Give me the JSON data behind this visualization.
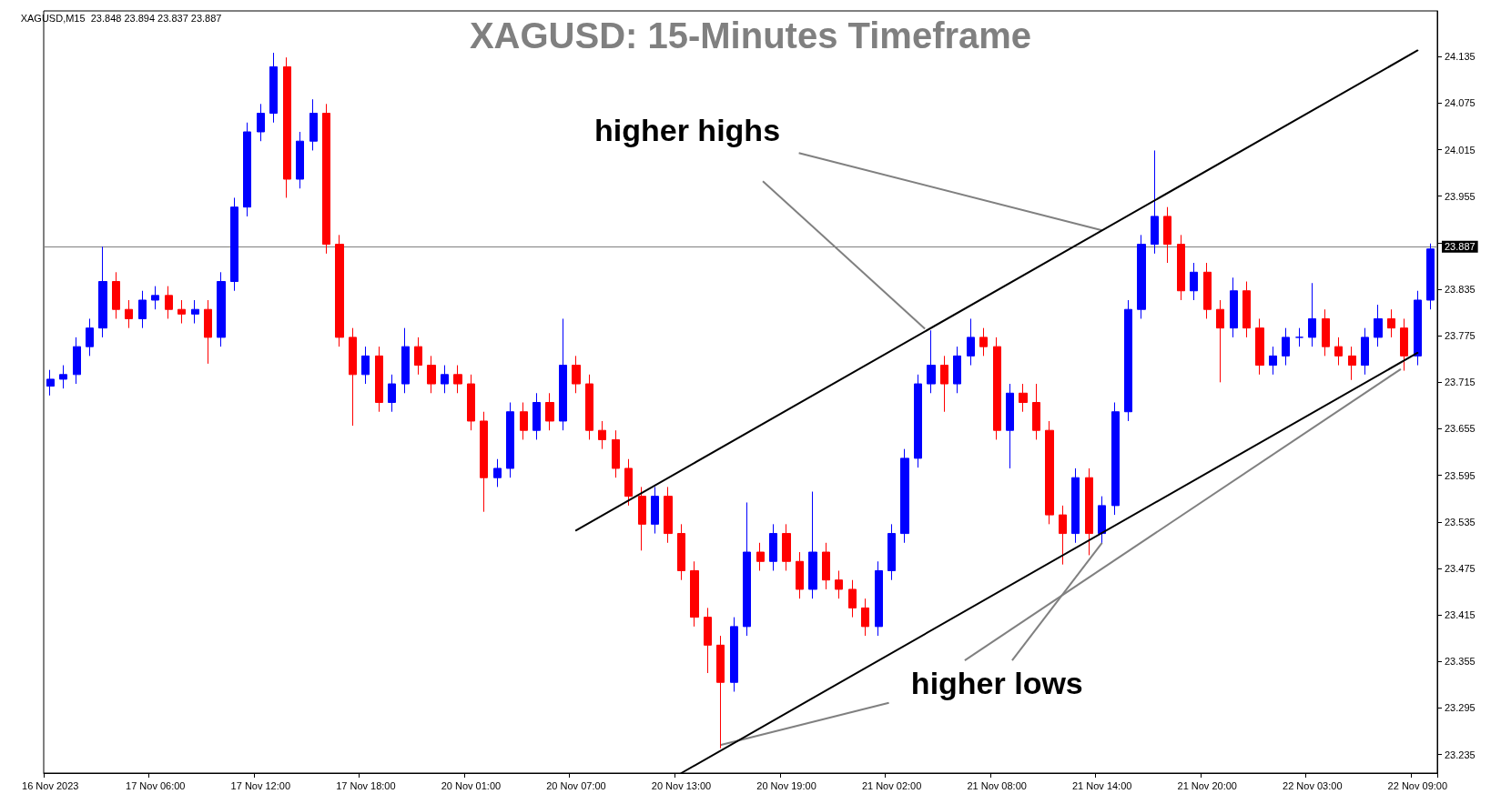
{
  "chart_data": {
    "type": "candlestick",
    "title": "XAGUSD: 15-Minutes Timeframe",
    "annotations": [
      "XAGUSD,M15  23.848 23.894 23.837 23.887",
      {
        "text": "higher highs",
        "x": "21 Nov 14:00",
        "y": 23.911
      },
      {
        "text": "higher lows",
        "x": "21 Nov 14:00",
        "y": 23.508
      }
    ],
    "categories": [
      "16 Nov 2023",
      null,
      null,
      null,
      null,
      null,
      null,
      null,
      "17 Nov 06:00",
      null,
      null,
      null,
      null,
      null,
      null,
      null,
      "17 Nov 12:00",
      null,
      null,
      null,
      null,
      null,
      null,
      null,
      "17 Nov 18:00",
      null,
      null,
      null,
      null,
      null,
      null,
      null,
      "20 Nov 01:00",
      null,
      null,
      null,
      null,
      null,
      null,
      null,
      "20 Nov 07:00",
      null,
      null,
      null,
      null,
      null,
      null,
      null,
      "20 Nov 13:00",
      null,
      null,
      null,
      null,
      null,
      null,
      null,
      "20 Nov 19:00",
      null,
      null,
      null,
      null,
      null,
      null,
      null,
      "21 Nov 02:00",
      null,
      null,
      null,
      null,
      null,
      null,
      null,
      "21 Nov 08:00",
      null,
      null,
      null,
      null,
      null,
      null,
      null,
      "21 Nov 14:00",
      null,
      null,
      null,
      null,
      null,
      null,
      null,
      "21 Nov 20:00",
      null,
      null,
      null,
      null,
      null,
      null,
      null,
      "22 Nov 03:00",
      null,
      null,
      null,
      null,
      null,
      null,
      null,
      "22 Nov 09:00",
      null
    ],
    "ohlc": [
      [
        23.71,
        23.731,
        23.698,
        23.719
      ],
      [
        23.719,
        23.737,
        23.707,
        23.725
      ],
      [
        23.725,
        23.773,
        23.713,
        23.761
      ],
      [
        23.761,
        23.797,
        23.749,
        23.785
      ],
      [
        23.785,
        23.89,
        23.773,
        23.845
      ],
      [
        23.845,
        23.857,
        23.797,
        23.809
      ],
      [
        23.809,
        23.821,
        23.785,
        23.797
      ],
      [
        23.797,
        23.833,
        23.785,
        23.821
      ],
      [
        23.821,
        23.839,
        23.809,
        23.827
      ],
      [
        23.827,
        23.839,
        23.797,
        23.809
      ],
      [
        23.809,
        23.821,
        23.791,
        23.803
      ],
      [
        23.803,
        23.821,
        23.791,
        23.809
      ],
      [
        23.809,
        23.821,
        23.739,
        23.773
      ],
      [
        23.773,
        23.857,
        23.761,
        23.845
      ],
      [
        23.845,
        23.953,
        23.833,
        23.941
      ],
      [
        23.941,
        24.05,
        23.929,
        24.038
      ],
      [
        24.038,
        24.074,
        24.026,
        24.062
      ],
      [
        24.062,
        24.14,
        24.05,
        24.122
      ],
      [
        24.122,
        24.134,
        23.953,
        23.977
      ],
      [
        23.977,
        24.038,
        23.965,
        24.026
      ],
      [
        24.026,
        24.08,
        24.014,
        24.062
      ],
      [
        24.062,
        24.074,
        23.881,
        23.893
      ],
      [
        23.893,
        23.905,
        23.761,
        23.773
      ],
      [
        23.773,
        23.785,
        23.659,
        23.725
      ],
      [
        23.725,
        23.761,
        23.713,
        23.749
      ],
      [
        23.749,
        23.761,
        23.677,
        23.689
      ],
      [
        23.689,
        23.725,
        23.677,
        23.713
      ],
      [
        23.713,
        23.785,
        23.701,
        23.761
      ],
      [
        23.761,
        23.773,
        23.725,
        23.737
      ],
      [
        23.737,
        23.749,
        23.701,
        23.713
      ],
      [
        23.713,
        23.737,
        23.701,
        23.725
      ],
      [
        23.725,
        23.737,
        23.701,
        23.713
      ],
      [
        23.713,
        23.725,
        23.653,
        23.665
      ],
      [
        23.665,
        23.677,
        23.548,
        23.592
      ],
      [
        23.592,
        23.616,
        23.58,
        23.604
      ],
      [
        23.604,
        23.689,
        23.592,
        23.677
      ],
      [
        23.677,
        23.689,
        23.641,
        23.653
      ],
      [
        23.653,
        23.701,
        23.641,
        23.689
      ],
      [
        23.689,
        23.701,
        23.653,
        23.665
      ],
      [
        23.665,
        23.797,
        23.653,
        23.737
      ],
      [
        23.737,
        23.749,
        23.701,
        23.713
      ],
      [
        23.713,
        23.725,
        23.641,
        23.653
      ],
      [
        23.653,
        23.665,
        23.629,
        23.641
      ],
      [
        23.641,
        23.653,
        23.592,
        23.604
      ],
      [
        23.604,
        23.616,
        23.556,
        23.568
      ],
      [
        23.568,
        23.58,
        23.498,
        23.532
      ],
      [
        23.532,
        23.58,
        23.52,
        23.568
      ],
      [
        23.568,
        23.58,
        23.508,
        23.52
      ],
      [
        23.52,
        23.532,
        23.46,
        23.472
      ],
      [
        23.472,
        23.484,
        23.4,
        23.412
      ],
      [
        23.412,
        23.424,
        23.34,
        23.376
      ],
      [
        23.376,
        23.388,
        23.243,
        23.328
      ],
      [
        23.328,
        23.412,
        23.316,
        23.4
      ],
      [
        23.4,
        23.56,
        23.388,
        23.496
      ],
      [
        23.496,
        23.508,
        23.472,
        23.484
      ],
      [
        23.484,
        23.532,
        23.472,
        23.52
      ],
      [
        23.52,
        23.532,
        23.472,
        23.484
      ],
      [
        23.484,
        23.496,
        23.436,
        23.448
      ],
      [
        23.448,
        23.574,
        23.436,
        23.496
      ],
      [
        23.496,
        23.508,
        23.448,
        23.46
      ],
      [
        23.46,
        23.472,
        23.436,
        23.448
      ],
      [
        23.448,
        23.46,
        23.412,
        23.424
      ],
      [
        23.424,
        23.436,
        23.388,
        23.4
      ],
      [
        23.4,
        23.484,
        23.388,
        23.472
      ],
      [
        23.472,
        23.532,
        23.46,
        23.52
      ],
      [
        23.52,
        23.629,
        23.508,
        23.617
      ],
      [
        23.617,
        23.725,
        23.605,
        23.713
      ],
      [
        23.713,
        23.782,
        23.701,
        23.737
      ],
      [
        23.737,
        23.749,
        23.677,
        23.713
      ],
      [
        23.713,
        23.761,
        23.701,
        23.749
      ],
      [
        23.749,
        23.797,
        23.737,
        23.773
      ],
      [
        23.773,
        23.785,
        23.749,
        23.761
      ],
      [
        23.761,
        23.773,
        23.641,
        23.653
      ],
      [
        23.653,
        23.713,
        23.604,
        23.701
      ],
      [
        23.701,
        23.713,
        23.677,
        23.689
      ],
      [
        23.689,
        23.713,
        23.641,
        23.653
      ],
      [
        23.653,
        23.665,
        23.532,
        23.544
      ],
      [
        23.544,
        23.556,
        23.48,
        23.52
      ],
      [
        23.52,
        23.604,
        23.508,
        23.592
      ],
      [
        23.592,
        23.604,
        23.492,
        23.52
      ],
      [
        23.52,
        23.568,
        23.508,
        23.556
      ],
      [
        23.556,
        23.689,
        23.544,
        23.677
      ],
      [
        23.677,
        23.821,
        23.665,
        23.809
      ],
      [
        23.809,
        23.905,
        23.797,
        23.893
      ],
      [
        23.893,
        24.014,
        23.881,
        23.929
      ],
      [
        23.929,
        23.941,
        23.869,
        23.893
      ],
      [
        23.893,
        23.905,
        23.821,
        23.833
      ],
      [
        23.833,
        23.869,
        23.821,
        23.857
      ],
      [
        23.857,
        23.869,
        23.797,
        23.809
      ],
      [
        23.809,
        23.821,
        23.715,
        23.785
      ],
      [
        23.785,
        23.85,
        23.773,
        23.833
      ],
      [
        23.833,
        23.845,
        23.773,
        23.785
      ],
      [
        23.785,
        23.797,
        23.725,
        23.737
      ],
      [
        23.737,
        23.761,
        23.725,
        23.749
      ],
      [
        23.749,
        23.785,
        23.737,
        23.773
      ],
      [
        23.773,
        23.785,
        23.761,
        23.773
      ],
      [
        23.773,
        23.843,
        23.761,
        23.797
      ],
      [
        23.797,
        23.809,
        23.749,
        23.761
      ],
      [
        23.761,
        23.773,
        23.737,
        23.749
      ],
      [
        23.749,
        23.761,
        23.718,
        23.737
      ],
      [
        23.737,
        23.785,
        23.725,
        23.773
      ],
      [
        23.773,
        23.815,
        23.761,
        23.797
      ],
      [
        23.797,
        23.809,
        23.773,
        23.785
      ],
      [
        23.785,
        23.797,
        23.73,
        23.749
      ],
      [
        23.749,
        23.833,
        23.737,
        23.821
      ],
      [
        23.821,
        23.894,
        23.809,
        23.887
      ]
    ],
    "colors": [
      "#0000ff",
      "#0000ff",
      "#0000ff",
      "#0000ff",
      "#0000ff",
      "#ff0000",
      "#ff0000",
      "#0000ff",
      "#0000ff",
      "#ff0000",
      "#ff0000",
      "#0000ff",
      "#ff0000",
      "#0000ff",
      "#0000ff",
      "#0000ff",
      "#0000ff",
      "#0000ff",
      "#ff0000",
      "#0000ff",
      "#0000ff",
      "#ff0000",
      "#ff0000",
      "#ff0000",
      "#0000ff",
      "#ff0000",
      "#0000ff",
      "#0000ff",
      "#ff0000",
      "#ff0000",
      "#0000ff",
      "#ff0000",
      "#ff0000",
      "#ff0000",
      "#0000ff",
      "#0000ff",
      "#ff0000",
      "#0000ff",
      "#ff0000",
      "#0000ff",
      "#ff0000",
      "#ff0000",
      "#ff0000",
      "#ff0000",
      "#ff0000",
      "#ff0000",
      "#0000ff",
      "#ff0000",
      "#ff0000",
      "#ff0000",
      "#ff0000",
      "#ff0000",
      "#0000ff",
      "#0000ff",
      "#ff0000",
      "#0000ff",
      "#ff0000",
      "#ff0000",
      "#0000ff",
      "#ff0000",
      "#ff0000",
      "#ff0000",
      "#ff0000",
      "#0000ff",
      "#0000ff",
      "#0000ff",
      "#0000ff",
      "#0000ff",
      "#ff0000",
      "#0000ff",
      "#0000ff",
      "#ff0000",
      "#ff0000",
      "#0000ff",
      "#ff0000",
      "#ff0000",
      "#ff0000",
      "#ff0000",
      "#0000ff",
      "#ff0000",
      "#0000ff",
      "#0000ff",
      "#0000ff",
      "#0000ff",
      "#0000ff",
      "#ff0000",
      "#ff0000",
      "#0000ff",
      "#ff0000",
      "#ff0000",
      "#0000ff",
      "#ff0000",
      "#ff0000",
      "#0000ff",
      "#0000ff",
      "#0000ff",
      "#0000ff",
      "#ff0000",
      "#ff0000",
      "#ff0000",
      "#0000ff",
      "#0000ff",
      "#ff0000",
      "#ff0000",
      "#0000ff",
      "#0000ff"
    ],
    "series": [
      {
        "type": "line",
        "x": [
          "20 Nov 07:00",
          "22 Nov 09:00"
        ],
        "values": [
          23.524,
          24.143
        ],
        "color": "#000000"
      },
      {
        "type": "line",
        "x": [
          "20 Nov 13:00",
          "22 Nov 09:00"
        ],
        "values": [
          23.211,
          23.753
        ],
        "color": "#000000"
      }
    ],
    "ref_lines": [
      {
        "axis": "y",
        "value": 23.887,
        "label": "23.887",
        "color": "#808080"
      }
    ],
    "ylim": [
      23.211,
      24.194
    ],
    "yticks": [
      23.235,
      23.295,
      23.355,
      23.415,
      23.475,
      23.535,
      23.595,
      23.655,
      23.715,
      23.775,
      23.835,
      {
        "value": 23.895,
        "label": null
      },
      23.955,
      24.015,
      24.075,
      24.135
    ],
    "grid": false
  }
}
